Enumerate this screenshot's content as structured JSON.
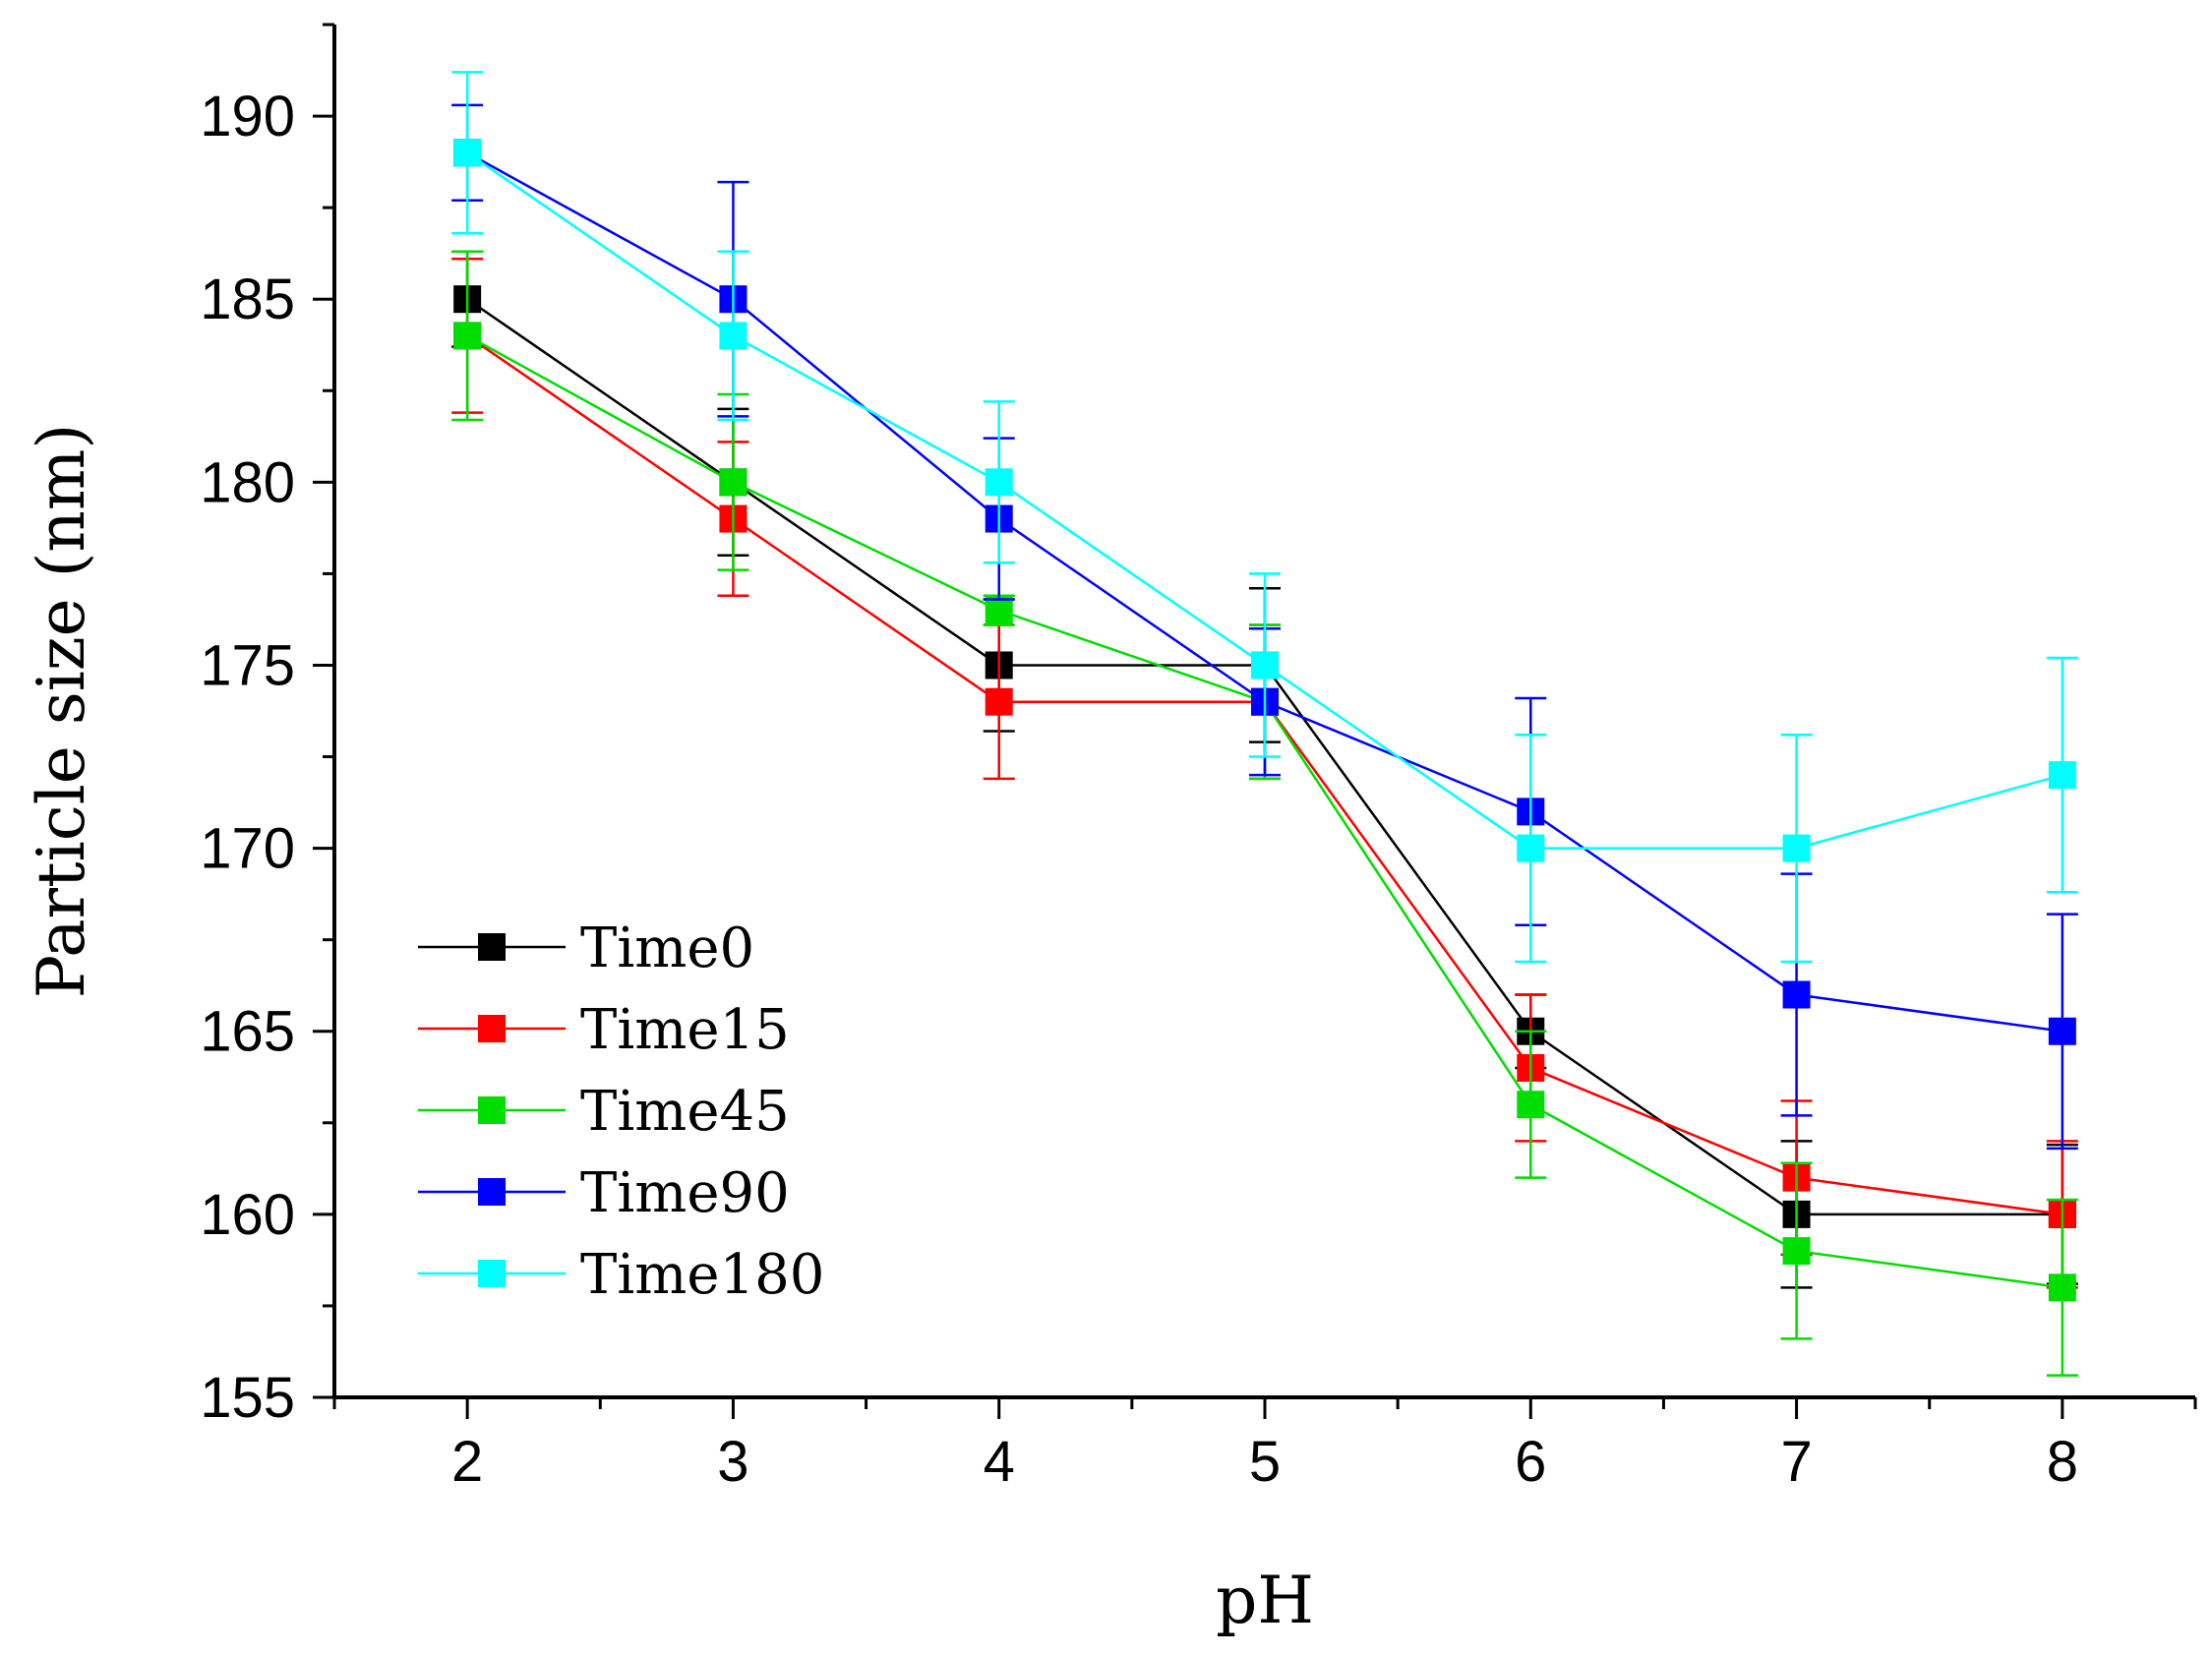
{
  "chart_data": {
    "type": "line",
    "title": "",
    "xlabel": "pH",
    "ylabel": "Particle size (nm)",
    "x": [
      2,
      3,
      4,
      5,
      6,
      7,
      8
    ],
    "xlim": [
      1.5,
      8.5
    ],
    "ylim": [
      155,
      192.5
    ],
    "xticks": [
      2,
      3,
      4,
      5,
      6,
      7,
      8
    ],
    "yticks": [
      155,
      160,
      165,
      170,
      175,
      180,
      185,
      190
    ],
    "grid": false,
    "legend_position": "bottom-left",
    "series": [
      {
        "name": "Time0",
        "color": "#000000",
        "values": [
          185,
          180,
          175,
          175,
          165,
          160,
          160
        ],
        "errors": [
          1.3,
          2.0,
          1.8,
          2.1,
          1.0,
          2.0,
          1.9
        ]
      },
      {
        "name": "Time15",
        "color": "#ff0000",
        "values": [
          184,
          179,
          174,
          174,
          164,
          161,
          160
        ],
        "errors": [
          2.1,
          2.1,
          2.1,
          2.1,
          2.0,
          2.1,
          2.0
        ]
      },
      {
        "name": "Time45",
        "color": "#00dd00",
        "values": [
          184,
          180,
          176.5,
          174,
          163,
          159,
          158
        ],
        "errors": [
          2.3,
          2.4,
          0.4,
          2.1,
          2.0,
          2.4,
          2.4
        ]
      },
      {
        "name": "Time90",
        "color": "#0000ff",
        "values": [
          189,
          185,
          179,
          174,
          171,
          166,
          165
        ],
        "errors": [
          1.3,
          3.2,
          2.2,
          2.0,
          3.1,
          3.3,
          3.2
        ]
      },
      {
        "name": "Time180",
        "color": "#00ffff",
        "values": [
          189,
          184,
          180,
          175,
          170,
          170,
          172
        ],
        "errors": [
          2.2,
          2.3,
          2.2,
          2.5,
          3.1,
          3.1,
          3.2
        ]
      }
    ]
  }
}
